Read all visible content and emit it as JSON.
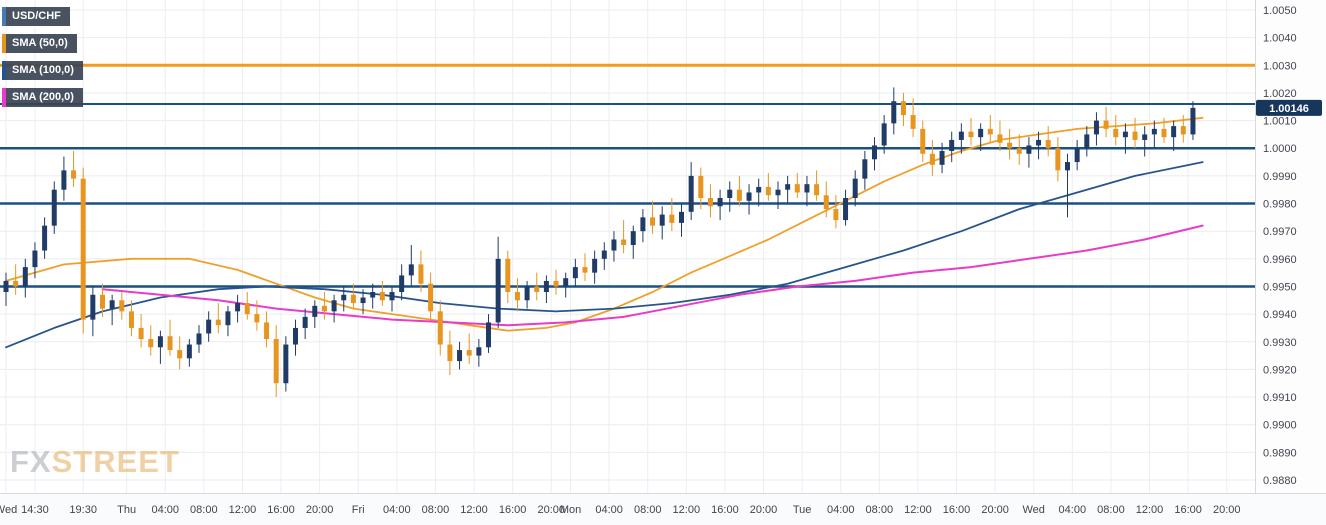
{
  "watermark": {
    "fx": "FX",
    "street": "STREET"
  },
  "legend": {
    "items": [
      {
        "label": "USD/CHF",
        "color": "#4a7bb0"
      },
      {
        "label": "SMA (50,0)",
        "color": "#e8951f"
      },
      {
        "label": "SMA (100,0)",
        "color": "#27548d"
      },
      {
        "label": "SMA (200,0)",
        "color": "#e83cc8"
      }
    ]
  },
  "chart_data": {
    "type": "candlestick",
    "instrument": "USD/CHF",
    "series_names": [
      "USD/CHF",
      "SMA (50,0)",
      "SMA (100,0)",
      "SMA (200,0)"
    ],
    "current_price": 1.00146,
    "current_price_label": "1.00146",
    "badge_color": "#16365c",
    "up_color": "#1f3b66",
    "down_color": "#e8951f",
    "grid_color": "#e9ebf0",
    "vgrid_color": "#edeef3",
    "axis_text_color": "#41454c",
    "y_axis": {
      "max": 1.005,
      "min": 0.988,
      "step": 0.001,
      "labels": [
        "1.0050",
        "1.0040",
        "1.0030",
        "1.0020",
        "1.0010",
        "1.0000",
        "0.9990",
        "0.9980",
        "0.9970",
        "0.9960",
        "0.9950",
        "0.9940",
        "0.9930",
        "0.9920",
        "0.9910",
        "0.9900",
        "0.9890",
        "0.9880"
      ]
    },
    "levels": [
      {
        "price": 1.003,
        "color": "#f29b1d",
        "width": 3
      },
      {
        "price": 1.0016,
        "color": "#1c5083",
        "width": 2
      },
      {
        "price": 1.0,
        "color": "#1c5083",
        "width": 2.5
      },
      {
        "price": 0.998,
        "color": "#1c5083",
        "width": 2.5
      },
      {
        "price": 0.995,
        "color": "#1c5083",
        "width": 2.5
      }
    ],
    "x_ticks": [
      {
        "p": 0,
        "l": "Wed"
      },
      {
        "p": 3,
        "l": "14:30"
      },
      {
        "p": 8,
        "l": "19:30"
      },
      {
        "p": 12.5,
        "l": "Thu"
      },
      {
        "p": 16.5,
        "l": "04:00"
      },
      {
        "p": 20.5,
        "l": "08:00"
      },
      {
        "p": 24.5,
        "l": "12:00"
      },
      {
        "p": 28.5,
        "l": "16:00"
      },
      {
        "p": 32.5,
        "l": "20:00"
      },
      {
        "p": 36.5,
        "l": "Fri"
      },
      {
        "p": 40.5,
        "l": "04:00"
      },
      {
        "p": 44.5,
        "l": "08:00"
      },
      {
        "p": 48.5,
        "l": "12:00"
      },
      {
        "p": 52.5,
        "l": "16:00"
      },
      {
        "p": 56.5,
        "l": "20:00"
      },
      {
        "p": 58.5,
        "l": "Mon"
      },
      {
        "p": 62.5,
        "l": "04:00"
      },
      {
        "p": 66.5,
        "l": "08:00"
      },
      {
        "p": 70.5,
        "l": "12:00"
      },
      {
        "p": 74.5,
        "l": "16:00"
      },
      {
        "p": 78.5,
        "l": "20:00"
      },
      {
        "p": 82.5,
        "l": "Tue"
      },
      {
        "p": 86.5,
        "l": "04:00"
      },
      {
        "p": 90.5,
        "l": "08:00"
      },
      {
        "p": 94.5,
        "l": "12:00"
      },
      {
        "p": 98.5,
        "l": "16:00"
      },
      {
        "p": 102.5,
        "l": "20:00"
      },
      {
        "p": 106.5,
        "l": "Wed"
      },
      {
        "p": 110.5,
        "l": "04:00"
      },
      {
        "p": 114.5,
        "l": "08:00"
      },
      {
        "p": 118.5,
        "l": "12:00"
      },
      {
        "p": 122.5,
        "l": "16:00"
      },
      {
        "p": 126.5,
        "l": "20:00"
      }
    ],
    "candles": [
      [
        0.9948,
        0.9955,
        0.9943,
        0.9952
      ],
      [
        0.9952,
        0.9958,
        0.9947,
        0.995
      ],
      [
        0.995,
        0.996,
        0.9946,
        0.9957
      ],
      [
        0.9957,
        0.9966,
        0.9953,
        0.9963
      ],
      [
        0.9963,
        0.9975,
        0.996,
        0.9972
      ],
      [
        0.9972,
        0.9988,
        0.9969,
        0.9985
      ],
      [
        0.9985,
        0.9997,
        0.9981,
        0.9992
      ],
      [
        0.9992,
        0.9999,
        0.9986,
        0.9989
      ],
      [
        0.9989,
        0.9993,
        0.9933,
        0.9938
      ],
      [
        0.9938,
        0.995,
        0.9932,
        0.9947
      ],
      [
        0.9947,
        0.9951,
        0.9939,
        0.9942
      ],
      [
        0.9942,
        0.9947,
        0.9936,
        0.9945
      ],
      [
        0.9945,
        0.9948,
        0.9938,
        0.9941
      ],
      [
        0.9941,
        0.9945,
        0.9932,
        0.9935
      ],
      [
        0.9935,
        0.994,
        0.9928,
        0.9931
      ],
      [
        0.9931,
        0.9936,
        0.9925,
        0.9928
      ],
      [
        0.9928,
        0.9934,
        0.9922,
        0.9932
      ],
      [
        0.9932,
        0.9938,
        0.9925,
        0.9927
      ],
      [
        0.9927,
        0.9932,
        0.992,
        0.9924
      ],
      [
        0.9924,
        0.9931,
        0.9921,
        0.9929
      ],
      [
        0.9929,
        0.9936,
        0.9926,
        0.9933
      ],
      [
        0.9933,
        0.9941,
        0.993,
        0.9938
      ],
      [
        0.9938,
        0.9944,
        0.9933,
        0.9936
      ],
      [
        0.9936,
        0.9943,
        0.9932,
        0.9941
      ],
      [
        0.9941,
        0.9947,
        0.9937,
        0.9944
      ],
      [
        0.9944,
        0.9948,
        0.9938,
        0.994
      ],
      [
        0.994,
        0.9945,
        0.9934,
        0.9937
      ],
      [
        0.9937,
        0.9941,
        0.9928,
        0.9931
      ],
      [
        0.9931,
        0.9936,
        0.991,
        0.9915
      ],
      [
        0.9915,
        0.9932,
        0.9912,
        0.9929
      ],
      [
        0.9929,
        0.9938,
        0.9925,
        0.9935
      ],
      [
        0.9935,
        0.9942,
        0.9931,
        0.9939
      ],
      [
        0.9939,
        0.9945,
        0.9935,
        0.9943
      ],
      [
        0.9943,
        0.9948,
        0.9938,
        0.9941
      ],
      [
        0.9941,
        0.9947,
        0.9937,
        0.9945
      ],
      [
        0.9945,
        0.995,
        0.9941,
        0.9947
      ],
      [
        0.9947,
        0.9951,
        0.9942,
        0.9944
      ],
      [
        0.9944,
        0.9949,
        0.994,
        0.9946
      ],
      [
        0.9946,
        0.9951,
        0.9942,
        0.9948
      ],
      [
        0.9948,
        0.9952,
        0.9943,
        0.9945
      ],
      [
        0.9945,
        0.995,
        0.9941,
        0.9948
      ],
      [
        0.9948,
        0.9958,
        0.9945,
        0.9954
      ],
      [
        0.9954,
        0.9965,
        0.995,
        0.9958
      ],
      [
        0.9958,
        0.9963,
        0.9948,
        0.9951
      ],
      [
        0.9951,
        0.9955,
        0.9938,
        0.9941
      ],
      [
        0.9941,
        0.9945,
        0.9925,
        0.9929
      ],
      [
        0.9929,
        0.9934,
        0.9918,
        0.9923
      ],
      [
        0.9923,
        0.993,
        0.992,
        0.9927
      ],
      [
        0.9927,
        0.9933,
        0.9922,
        0.9925
      ],
      [
        0.9925,
        0.9931,
        0.9921,
        0.9928
      ],
      [
        0.9928,
        0.994,
        0.9926,
        0.9937
      ],
      [
        0.9937,
        0.9968,
        0.9935,
        0.996
      ],
      [
        0.996,
        0.9963,
        0.9944,
        0.9948
      ],
      [
        0.9948,
        0.9953,
        0.9941,
        0.9945
      ],
      [
        0.9945,
        0.9952,
        0.9942,
        0.995
      ],
      [
        0.995,
        0.9955,
        0.9945,
        0.9948
      ],
      [
        0.9948,
        0.9954,
        0.9944,
        0.9952
      ],
      [
        0.9952,
        0.9956,
        0.9947,
        0.995
      ],
      [
        0.995,
        0.9955,
        0.9946,
        0.9953
      ],
      [
        0.9953,
        0.996,
        0.995,
        0.9957
      ],
      [
        0.9957,
        0.9962,
        0.9952,
        0.9955
      ],
      [
        0.9955,
        0.9963,
        0.9951,
        0.996
      ],
      [
        0.996,
        0.9966,
        0.9956,
        0.9963
      ],
      [
        0.9963,
        0.997,
        0.9959,
        0.9967
      ],
      [
        0.9967,
        0.9974,
        0.9962,
        0.9965
      ],
      [
        0.9965,
        0.9972,
        0.996,
        0.997
      ],
      [
        0.997,
        0.9978,
        0.9966,
        0.9975
      ],
      [
        0.9975,
        0.9981,
        0.9969,
        0.9972
      ],
      [
        0.9972,
        0.9979,
        0.9967,
        0.9976
      ],
      [
        0.9976,
        0.9982,
        0.997,
        0.9973
      ],
      [
        0.9973,
        0.998,
        0.9968,
        0.9977
      ],
      [
        0.9977,
        0.9995,
        0.9974,
        0.999
      ],
      [
        0.999,
        0.9993,
        0.9978,
        0.9982
      ],
      [
        0.9982,
        0.9987,
        0.9975,
        0.9979
      ],
      [
        0.9979,
        0.9985,
        0.9974,
        0.9982
      ],
      [
        0.9982,
        0.9988,
        0.9977,
        0.9985
      ],
      [
        0.9985,
        0.999,
        0.9979,
        0.9981
      ],
      [
        0.9981,
        0.9987,
        0.9976,
        0.9984
      ],
      [
        0.9984,
        0.9989,
        0.9979,
        0.9986
      ],
      [
        0.9986,
        0.9991,
        0.9981,
        0.9983
      ],
      [
        0.9983,
        0.9988,
        0.9978,
        0.9985
      ],
      [
        0.9985,
        0.999,
        0.998,
        0.9987
      ],
      [
        0.9987,
        0.9991,
        0.9982,
        0.9984
      ],
      [
        0.9984,
        0.999,
        0.9979,
        0.9987
      ],
      [
        0.9987,
        0.9992,
        0.9981,
        0.9983
      ],
      [
        0.9983,
        0.9988,
        0.9975,
        0.9978
      ],
      [
        0.9978,
        0.9983,
        0.9971,
        0.9974
      ],
      [
        0.9974,
        0.9985,
        0.9972,
        0.9982
      ],
      [
        0.9982,
        0.9992,
        0.9979,
        0.9989
      ],
      [
        0.9989,
        0.9999,
        0.9985,
        0.9996
      ],
      [
        0.9996,
        1.0004,
        0.9992,
        1.0001
      ],
      [
        1.0001,
        1.0012,
        0.9998,
        1.0009
      ],
      [
        1.0009,
        1.0022,
        1.0005,
        1.0017
      ],
      [
        1.0017,
        1.002,
        1.0008,
        1.0012
      ],
      [
        1.0012,
        1.0018,
        1.0004,
        1.0007
      ],
      [
        1.0007,
        1.001,
        0.9995,
        0.9998
      ],
      [
        0.9998,
        1.0003,
        0.999,
        0.9994
      ],
      [
        0.9994,
        1.0002,
        0.9991,
        0.9999
      ],
      [
        0.9999,
        1.0006,
        0.9995,
        1.0003
      ],
      [
        1.0003,
        1.0009,
        0.9998,
        1.0006
      ],
      [
        1.0006,
        1.0011,
        1.0001,
        1.0004
      ],
      [
        1.0004,
        1.0009,
        0.9999,
        1.0007
      ],
      [
        1.0007,
        1.0012,
        1.0002,
        1.0005
      ],
      [
        1.0005,
        1.001,
        0.9999,
        1.0002
      ],
      [
        1.0002,
        1.0007,
        0.9996,
        1.0
      ],
      [
        1.0,
        1.0005,
        0.9994,
        0.9998
      ],
      [
        0.9998,
        1.0004,
        0.9993,
        1.0001
      ],
      [
        1.0001,
        1.0006,
        0.9996,
        1.0003
      ],
      [
        1.0003,
        1.0008,
        0.9997,
        1.0
      ],
      [
        1.0,
        1.0004,
        0.9988,
        0.9992
      ],
      [
        0.9992,
        0.9998,
        0.9975,
        0.9995
      ],
      [
        0.9995,
        1.0003,
        0.9992,
        1.0
      ],
      [
        1.0,
        1.0008,
        0.9997,
        1.0005
      ],
      [
        1.0005,
        1.0013,
        1.0001,
        1.001
      ],
      [
        1.001,
        1.0015,
        1.0004,
        1.0007
      ],
      [
        1.0007,
        1.0012,
        1.0001,
        1.0004
      ],
      [
        1.0004,
        1.0009,
        0.9998,
        1.0006
      ],
      [
        1.0006,
        1.0011,
        1.0,
        1.0003
      ],
      [
        1.0003,
        1.0008,
        0.9997,
        1.0005
      ],
      [
        1.0005,
        1.001,
        1.0,
        1.0007
      ],
      [
        1.0007,
        1.0011,
        1.0002,
        1.0004
      ],
      [
        1.0004,
        1.001,
        0.9999,
        1.0008
      ],
      [
        1.0008,
        1.0012,
        1.0002,
        1.0005
      ],
      [
        1.0005,
        1.0017,
        1.0003,
        1.00146
      ]
    ],
    "sma": [
      {
        "name": "SMA (50,0)",
        "color": "#f0a02a",
        "width": 1.8,
        "points": [
          [
            0,
            0.9952
          ],
          [
            6,
            0.9958
          ],
          [
            13,
            0.996
          ],
          [
            19,
            0.996
          ],
          [
            24,
            0.9956
          ],
          [
            28,
            0.9951
          ],
          [
            32,
            0.9946
          ],
          [
            36,
            0.9942
          ],
          [
            40,
            0.994
          ],
          [
            44,
            0.9938
          ],
          [
            48,
            0.9936
          ],
          [
            52,
            0.9934
          ],
          [
            56,
            0.9935
          ],
          [
            59,
            0.9937
          ],
          [
            63,
            0.9942
          ],
          [
            67,
            0.9948
          ],
          [
            71,
            0.9955
          ],
          [
            75,
            0.9961
          ],
          [
            79,
            0.9967
          ],
          [
            83,
            0.9974
          ],
          [
            87,
            0.9981
          ],
          [
            91,
            0.9988
          ],
          [
            95,
            0.9994
          ],
          [
            99,
            0.9999
          ],
          [
            103,
            1.0003
          ],
          [
            107,
            1.0005
          ],
          [
            111,
            1.0007
          ],
          [
            115,
            1.0008
          ],
          [
            119,
            1.0009
          ],
          [
            124,
            1.0011
          ]
        ]
      },
      {
        "name": "SMA (100,0)",
        "color": "#27548d",
        "width": 1.8,
        "points": [
          [
            0,
            0.9928
          ],
          [
            5,
            0.9935
          ],
          [
            10,
            0.9941
          ],
          [
            16,
            0.9946
          ],
          [
            22,
            0.9949
          ],
          [
            27,
            0.995
          ],
          [
            33,
            0.9949
          ],
          [
            39,
            0.9947
          ],
          [
            45,
            0.9944
          ],
          [
            51,
            0.9942
          ],
          [
            57,
            0.9941
          ],
          [
            63,
            0.9942
          ],
          [
            69,
            0.9944
          ],
          [
            75,
            0.9947
          ],
          [
            81,
            0.9951
          ],
          [
            87,
            0.9957
          ],
          [
            93,
            0.9963
          ],
          [
            99,
            0.997
          ],
          [
            105,
            0.9978
          ],
          [
            111,
            0.9984
          ],
          [
            117,
            0.999
          ],
          [
            124,
            0.9995
          ]
        ]
      },
      {
        "name": "SMA (200,0)",
        "color": "#e83cc8",
        "width": 2,
        "points": [
          [
            10,
            0.9949
          ],
          [
            16,
            0.9947
          ],
          [
            22,
            0.9945
          ],
          [
            28,
            0.9942
          ],
          [
            34,
            0.994
          ],
          [
            40,
            0.9938
          ],
          [
            46,
            0.9937
          ],
          [
            52,
            0.9936
          ],
          [
            58,
            0.9937
          ],
          [
            64,
            0.9939
          ],
          [
            70,
            0.9943
          ],
          [
            76,
            0.9947
          ],
          [
            82,
            0.995
          ],
          [
            88,
            0.9952
          ],
          [
            94,
            0.9955
          ],
          [
            100,
            0.9957
          ],
          [
            106,
            0.996
          ],
          [
            112,
            0.9963
          ],
          [
            118,
            0.9967
          ],
          [
            124,
            0.9972
          ]
        ]
      }
    ]
  }
}
